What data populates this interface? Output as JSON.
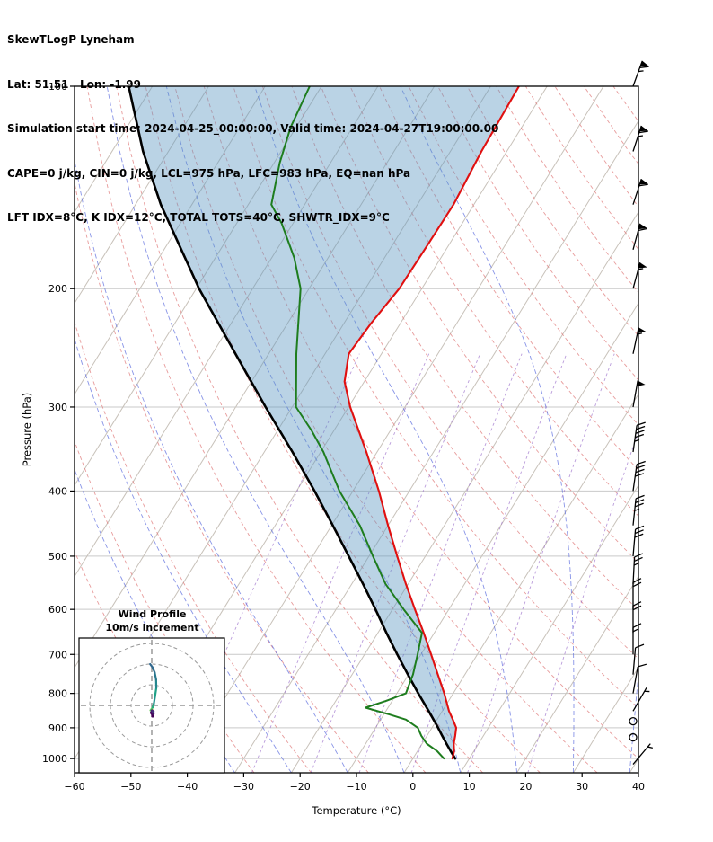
{
  "header": {
    "title": "SkewTLogP Lyneham",
    "location_line": "Lat: 51.51   Lon: -1.99",
    "time_line": "Simulation start time: 2024-04-25_00:00:00, Valid time: 2024-04-27T19:00:00.00",
    "indices_line1": "CAPE=0 j/kg, CIN=0 j/kg, LCL=975 hPa, LFC=983 hPa, EQ=nan hPa",
    "indices_line2": "LFT IDX=8°C, K IDX=12°C, TOTAL TOTS=40°C, SHWTR_IDX=9°C"
  },
  "chart_data": {
    "type": "line",
    "title": "SkewTLogP Lyneham",
    "xlabel": "Temperature (°C)",
    "ylabel": "Pressure (hPa)",
    "xlim": [
      -60,
      40
    ],
    "x_ticks": [
      -60,
      -50,
      -40,
      -30,
      -20,
      -10,
      0,
      10,
      20,
      30,
      40
    ],
    "y_ticks": [
      100,
      200,
      300,
      400,
      500,
      600,
      700,
      800,
      900,
      1000
    ],
    "p_top": 100,
    "p_bottom": 1050,
    "skew_deg_per_decade": 73.8,
    "cape_shade_color": "#5b96c0",
    "series": {
      "temperature": {
        "name": "temperature",
        "color": "#e01010",
        "pressure": [
          1000,
          975,
          950,
          925,
          900,
          875,
          850,
          800,
          750,
          700,
          650,
          600,
          550,
          500,
          450,
          400,
          350,
          300,
          275,
          250,
          225,
          200,
          175,
          150,
          125,
          100
        ],
        "values": [
          7.0,
          6.5,
          5.6,
          5.0,
          4.3,
          2.8,
          1.2,
          -1.6,
          -4.8,
          -8.2,
          -11.9,
          -16.0,
          -20.4,
          -25.0,
          -30.0,
          -35.4,
          -41.9,
          -49.7,
          -53.5,
          -55.8,
          -55.2,
          -54.0,
          -53.8,
          -53.6,
          -54.5,
          -55.0
        ]
      },
      "dewpoint": {
        "name": "dewpoint",
        "color": "#1e7d1e",
        "pressure": [
          1000,
          975,
          950,
          925,
          900,
          875,
          860,
          840,
          820,
          800,
          775,
          750,
          700,
          650,
          600,
          550,
          500,
          450,
          400,
          350,
          325,
          300,
          250,
          200,
          180,
          160,
          150,
          130,
          115,
          100
        ],
        "values": [
          5.5,
          3.5,
          0.8,
          -1.0,
          -2.5,
          -5.5,
          -9.0,
          -14.0,
          -11.0,
          -8.4,
          -8.8,
          -9.2,
          -10.6,
          -12.2,
          -18.0,
          -24.0,
          -29.3,
          -35.0,
          -42.4,
          -49.5,
          -54.0,
          -59.3,
          -65.1,
          -71.5,
          -76.0,
          -82.0,
          -85.9,
          -89.0,
          -91.0,
          -92.1
        ]
      },
      "parcel": {
        "name": "parcel",
        "color": "#000000",
        "pressure": [
          1000,
          975,
          950,
          925,
          900,
          850,
          800,
          750,
          700,
          650,
          600,
          550,
          500,
          450,
          400,
          350,
          300,
          250,
          200,
          150,
          125,
          100
        ],
        "values": [
          7.5,
          5.9,
          4.3,
          2.7,
          1.1,
          -2.4,
          -6.2,
          -10.1,
          -14.2,
          -18.5,
          -23.0,
          -28.0,
          -33.6,
          -39.8,
          -46.8,
          -55.0,
          -64.7,
          -75.9,
          -89.5,
          -105.5,
          -114.5,
          -124.2
        ]
      }
    },
    "background": {
      "isotherms": {
        "min": -120,
        "max": 40,
        "step": 10,
        "color": "#c8c2ba"
      },
      "pressure_lines": {
        "color": "#c9c9c9"
      },
      "dry_adiabats": {
        "min": -40,
        "max": 200,
        "step": 10,
        "color": "#e07a7a"
      },
      "moist_adiabats": {
        "min": -30,
        "max": 40,
        "step": 10,
        "color": "#5566dd"
      },
      "mixing_ratio": {
        "values": [
          0.1,
          0.4,
          1,
          2,
          4,
          8,
          16
        ],
        "color": "#9668c8"
      }
    },
    "wind_barbs": {
      "units": "kt",
      "levels": [
        {
          "p": 1020,
          "kt": 5,
          "ang": 40
        },
        {
          "p": 850,
          "kt": 5,
          "ang": 30
        },
        {
          "p": 800,
          "kt": 10,
          "ang": 10
        },
        {
          "p": 750,
          "kt": 10,
          "ang": 5
        },
        {
          "p": 700,
          "kt": 15,
          "ang": 0
        },
        {
          "p": 650,
          "kt": 20,
          "ang": 0
        },
        {
          "p": 600,
          "kt": 20,
          "ang": 0
        },
        {
          "p": 550,
          "kt": 25,
          "ang": 3
        },
        {
          "p": 500,
          "kt": 30,
          "ang": 5
        },
        {
          "p": 450,
          "kt": 35,
          "ang": 6
        },
        {
          "p": 400,
          "kt": 40,
          "ang": 8
        },
        {
          "p": 350,
          "kt": 45,
          "ang": 8
        },
        {
          "p": 300,
          "kt": 50,
          "ang": 10
        },
        {
          "p": 250,
          "kt": 55,
          "ang": 12
        },
        {
          "p": 200,
          "kt": 55,
          "ang": 15
        },
        {
          "p": 175,
          "kt": 60,
          "ang": 15
        },
        {
          "p": 150,
          "kt": 60,
          "ang": 18
        },
        {
          "p": 125,
          "kt": 65,
          "ang": 18
        },
        {
          "p": 100,
          "kt": 65,
          "ang": 20
        }
      ],
      "calm_levels": [
        {
          "p": 930
        },
        {
          "p": 880
        }
      ]
    }
  },
  "inset": {
    "title_line1": "Wind Profile",
    "title_line2": "10m/s increment",
    "ring_step_ms": 10,
    "rings_ms": [
      10,
      20,
      30
    ],
    "points": [
      {
        "u": 0.4,
        "v": -5.2,
        "c": "#440154"
      },
      {
        "u": -0.2,
        "v": -3.6,
        "c": "#46085c"
      },
      {
        "u": 0.7,
        "v": -4.0,
        "c": "#471063"
      },
      {
        "u": 0.1,
        "v": -2.6,
        "c": "#482071"
      },
      {
        "u": 0.7,
        "v": -3.0,
        "c": "#46327e"
      },
      {
        "u": 0.0,
        "v": -1.8,
        "c": "#d8e219"
      },
      {
        "u": -0.6,
        "v": -2.4,
        "c": "#addc30"
      },
      {
        "u": 0.4,
        "v": -1.0,
        "c": "#5ec962"
      },
      {
        "u": 1.0,
        "v": 0.8,
        "c": "#28ae80"
      },
      {
        "u": 1.6,
        "v": 4.5,
        "c": "#21918c"
      },
      {
        "u": 2.2,
        "v": 8.5,
        "c": "#1fa187"
      },
      {
        "u": 2.1,
        "v": 12.5,
        "c": "#24868e"
      },
      {
        "u": 1.4,
        "v": 16.0,
        "c": "#2a788e"
      },
      {
        "u": 0.3,
        "v": 18.5,
        "c": "#2e6e8e"
      },
      {
        "u": -0.8,
        "v": 20.0,
        "c": "#31688e"
      }
    ]
  }
}
